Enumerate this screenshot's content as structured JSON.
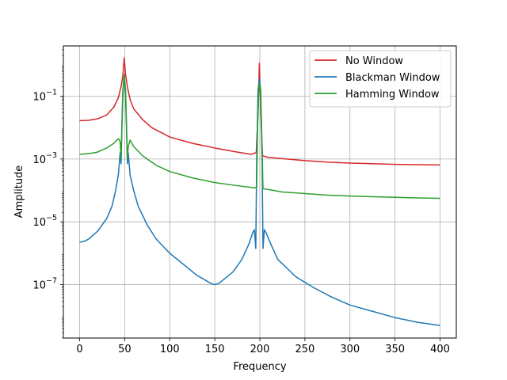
{
  "chart_data": {
    "type": "line",
    "title": "",
    "xlabel": "Frequency",
    "ylabel": "Amplitude",
    "xlim": [
      -18,
      418
    ],
    "ylim_log10": [
      -8.7,
      0.6
    ],
    "yscale": "log",
    "grid": true,
    "legend_placement": "top-right",
    "x_ticks": [
      0,
      50,
      100,
      150,
      200,
      250,
      300,
      350,
      400
    ],
    "x_tick_labels": [
      "0",
      "50",
      "100",
      "150",
      "200",
      "250",
      "300",
      "350",
      "400"
    ],
    "y_ticks_log10": [
      -7,
      -5,
      -3,
      -1
    ],
    "y_tick_bases": [
      "10",
      "10",
      "10",
      "10"
    ],
    "y_tick_exponents": [
      "−7",
      "−5",
      "−3",
      "−1"
    ],
    "series": [
      {
        "name": "No Window",
        "color": "#d62728",
        "points": [
          [
            0,
            -1.78
          ],
          [
            10,
            -1.77
          ],
          [
            20,
            -1.72
          ],
          [
            30,
            -1.6
          ],
          [
            38,
            -1.35
          ],
          [
            43,
            -1.05
          ],
          [
            46,
            -0.7
          ],
          [
            48,
            -0.35
          ],
          [
            49.5,
            0.22
          ],
          [
            51,
            -0.3
          ],
          [
            53,
            -0.7
          ],
          [
            56,
            -1.1
          ],
          [
            60,
            -1.4
          ],
          [
            70,
            -1.75
          ],
          [
            80,
            -2.0
          ],
          [
            100,
            -2.3
          ],
          [
            125,
            -2.5
          ],
          [
            150,
            -2.65
          ],
          [
            175,
            -2.78
          ],
          [
            190,
            -2.85
          ],
          [
            196,
            -2.8
          ],
          [
            198,
            -1.5
          ],
          [
            199.5,
            0.05
          ],
          [
            201,
            -1.5
          ],
          [
            203,
            -2.9
          ],
          [
            210,
            -2.95
          ],
          [
            230,
            -3.0
          ],
          [
            250,
            -3.05
          ],
          [
            275,
            -3.1
          ],
          [
            300,
            -3.13
          ],
          [
            325,
            -3.15
          ],
          [
            350,
            -3.17
          ],
          [
            375,
            -3.18
          ],
          [
            400,
            -3.19
          ]
        ]
      },
      {
        "name": "Blackman Window",
        "color": "#1f77b4",
        "points": [
          [
            0,
            -5.65
          ],
          [
            5,
            -5.62
          ],
          [
            10,
            -5.55
          ],
          [
            20,
            -5.3
          ],
          [
            30,
            -4.9
          ],
          [
            36,
            -4.5
          ],
          [
            40,
            -4.0
          ],
          [
            43,
            -3.5
          ],
          [
            45,
            -2.8
          ],
          [
            46,
            -3.15
          ],
          [
            47,
            -2.0
          ],
          [
            48,
            -1.0
          ],
          [
            49.5,
            -0.3
          ],
          [
            51,
            -1.0
          ],
          [
            52,
            -2.0
          ],
          [
            53,
            -3.15
          ],
          [
            54,
            -2.8
          ],
          [
            56,
            -3.5
          ],
          [
            60,
            -4.0
          ],
          [
            65,
            -4.5
          ],
          [
            75,
            -5.1
          ],
          [
            85,
            -5.55
          ],
          [
            100,
            -6.0
          ],
          [
            115,
            -6.35
          ],
          [
            130,
            -6.7
          ],
          [
            145,
            -6.95
          ],
          [
            150,
            -7.0
          ],
          [
            155,
            -6.95
          ],
          [
            170,
            -6.6
          ],
          [
            180,
            -6.2
          ],
          [
            188,
            -5.7
          ],
          [
            192,
            -5.35
          ],
          [
            194,
            -5.25
          ],
          [
            195.5,
            -5.85
          ],
          [
            196.5,
            -3.0
          ],
          [
            198,
            -0.8
          ],
          [
            199.5,
            -0.45
          ],
          [
            201,
            -0.8
          ],
          [
            202.5,
            -3.0
          ],
          [
            203.5,
            -5.85
          ],
          [
            205,
            -5.25
          ],
          [
            207,
            -5.35
          ],
          [
            212,
            -5.7
          ],
          [
            220,
            -6.2
          ],
          [
            240,
            -6.75
          ],
          [
            260,
            -7.1
          ],
          [
            280,
            -7.4
          ],
          [
            300,
            -7.65
          ],
          [
            325,
            -7.85
          ],
          [
            350,
            -8.05
          ],
          [
            375,
            -8.2
          ],
          [
            400,
            -8.3
          ]
        ]
      },
      {
        "name": "Hamming Window",
        "color": "#2ca02c",
        "points": [
          [
            0,
            -2.85
          ],
          [
            10,
            -2.83
          ],
          [
            20,
            -2.78
          ],
          [
            30,
            -2.65
          ],
          [
            38,
            -2.5
          ],
          [
            43,
            -2.35
          ],
          [
            45,
            -2.45
          ],
          [
            46,
            -3.0
          ],
          [
            47,
            -1.8
          ],
          [
            48,
            -0.8
          ],
          [
            49.5,
            -0.3
          ],
          [
            51,
            -0.8
          ],
          [
            52,
            -1.8
          ],
          [
            53,
            -3.0
          ],
          [
            54,
            -2.6
          ],
          [
            56,
            -2.4
          ],
          [
            60,
            -2.6
          ],
          [
            70,
            -2.9
          ],
          [
            85,
            -3.2
          ],
          [
            100,
            -3.4
          ],
          [
            125,
            -3.6
          ],
          [
            150,
            -3.75
          ],
          [
            175,
            -3.85
          ],
          [
            195,
            -3.92
          ],
          [
            196.5,
            -3.9
          ],
          [
            197.5,
            -2.0
          ],
          [
            199,
            -0.7
          ],
          [
            199.5,
            -0.6
          ],
          [
            200.5,
            -0.7
          ],
          [
            202,
            -2.0
          ],
          [
            203.5,
            -3.95
          ],
          [
            205,
            -3.95
          ],
          [
            225,
            -4.05
          ],
          [
            250,
            -4.1
          ],
          [
            275,
            -4.15
          ],
          [
            300,
            -4.18
          ],
          [
            325,
            -4.2
          ],
          [
            350,
            -4.22
          ],
          [
            375,
            -4.24
          ],
          [
            400,
            -4.25
          ]
        ]
      }
    ]
  }
}
